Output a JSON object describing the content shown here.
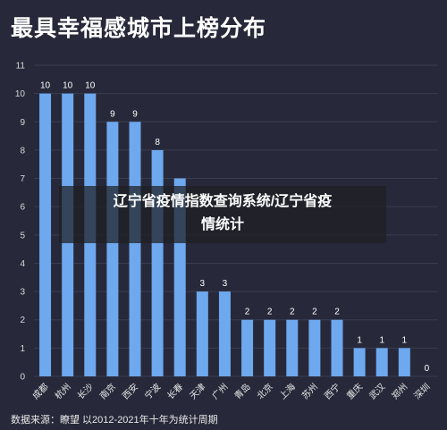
{
  "chart_data": {
    "type": "bar",
    "title": "最具幸福感城市上榜分布",
    "categories": [
      "成都",
      "杭州",
      "长沙",
      "南京",
      "西安",
      "宁波",
      "长春",
      "天津",
      "广州",
      "青岛",
      "北京",
      "上海",
      "苏州",
      "西宁",
      "重庆",
      "武汉",
      "郑州",
      "深圳"
    ],
    "values": [
      10,
      10,
      10,
      9,
      9,
      8,
      7,
      3,
      3,
      2,
      2,
      2,
      2,
      2,
      1,
      1,
      1,
      0
    ],
    "ylim": [
      0,
      11
    ],
    "yticks": [
      0,
      1,
      2,
      3,
      4,
      5,
      6,
      7,
      8,
      9,
      10,
      11
    ],
    "visible_value_labels": [
      "10",
      "10",
      "10",
      "9",
      "9",
      "8",
      "",
      "3",
      "3",
      "2",
      "2",
      "2",
      "2",
      "2",
      "1",
      "1",
      "1",
      "0"
    ],
    "grid": true,
    "bar_color": "#6ea8ee"
  },
  "source_note": "数据来源：瞭望 以2012-2021年十年为统计周期",
  "overlay": {
    "line1": "辽宁省疫情指数查询系统/辽宁省疫",
    "line2": "情统计"
  },
  "colors": {
    "background": "#27293a",
    "bar": "#6ea8ee"
  }
}
